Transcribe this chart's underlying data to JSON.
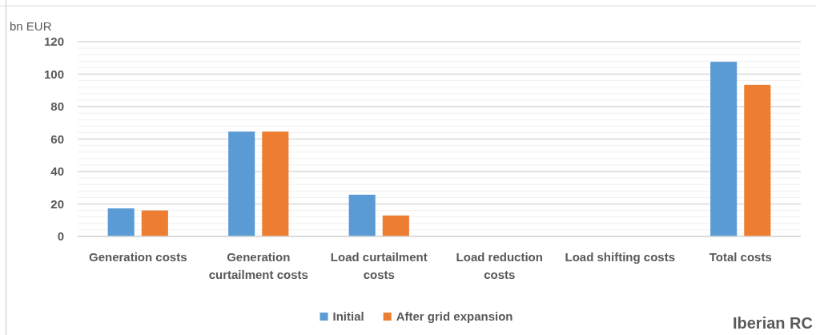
{
  "chart_data": {
    "type": "bar",
    "ylabel": "bn EUR",
    "categories": [
      "Generation costs",
      "Generation curtailment costs",
      "Load curtailment costs",
      "Load reduction costs",
      "Load shifting costs",
      "Total costs"
    ],
    "series": [
      {
        "name": "Initial",
        "color": "#5b9bd5",
        "values": [
          17.3,
          64.6,
          25.7,
          0,
          0,
          107.6
        ]
      },
      {
        "name": "After grid expansion",
        "color": "#ed7d31",
        "values": [
          16.0,
          64.6,
          12.9,
          0,
          0,
          93.4
        ]
      }
    ],
    "ylim": [
      0,
      120
    ],
    "yticks": [
      0,
      {
        "value": 4,
        "label": null
      },
      {
        "value": 8,
        "label": null
      },
      {
        "value": 12,
        "label": null
      },
      {
        "value": 16,
        "label": null
      },
      20,
      {
        "value": 24,
        "label": null
      },
      {
        "value": 28,
        "label": null
      },
      {
        "value": 32,
        "label": null
      },
      {
        "value": 36,
        "label": null
      },
      40,
      {
        "value": 44,
        "label": null
      },
      {
        "value": 48,
        "label": null
      },
      {
        "value": 52,
        "label": null
      },
      {
        "value": 56,
        "label": null
      },
      60,
      {
        "value": 64,
        "label": null
      },
      {
        "value": 68,
        "label": null
      },
      {
        "value": 72,
        "label": null
      },
      {
        "value": 76,
        "label": null
      },
      80,
      {
        "value": 84,
        "label": null
      },
      {
        "value": 88,
        "label": null
      },
      {
        "value": 92,
        "label": null
      },
      {
        "value": 96,
        "label": null
      },
      100,
      {
        "value": 104,
        "label": null
      },
      {
        "value": 108,
        "label": null
      },
      {
        "value": 112,
        "label": null
      },
      {
        "value": 116,
        "label": null
      },
      120
    ],
    "grid": true,
    "legend": "bottom",
    "annotations": [
      "Iberian RC"
    ]
  }
}
